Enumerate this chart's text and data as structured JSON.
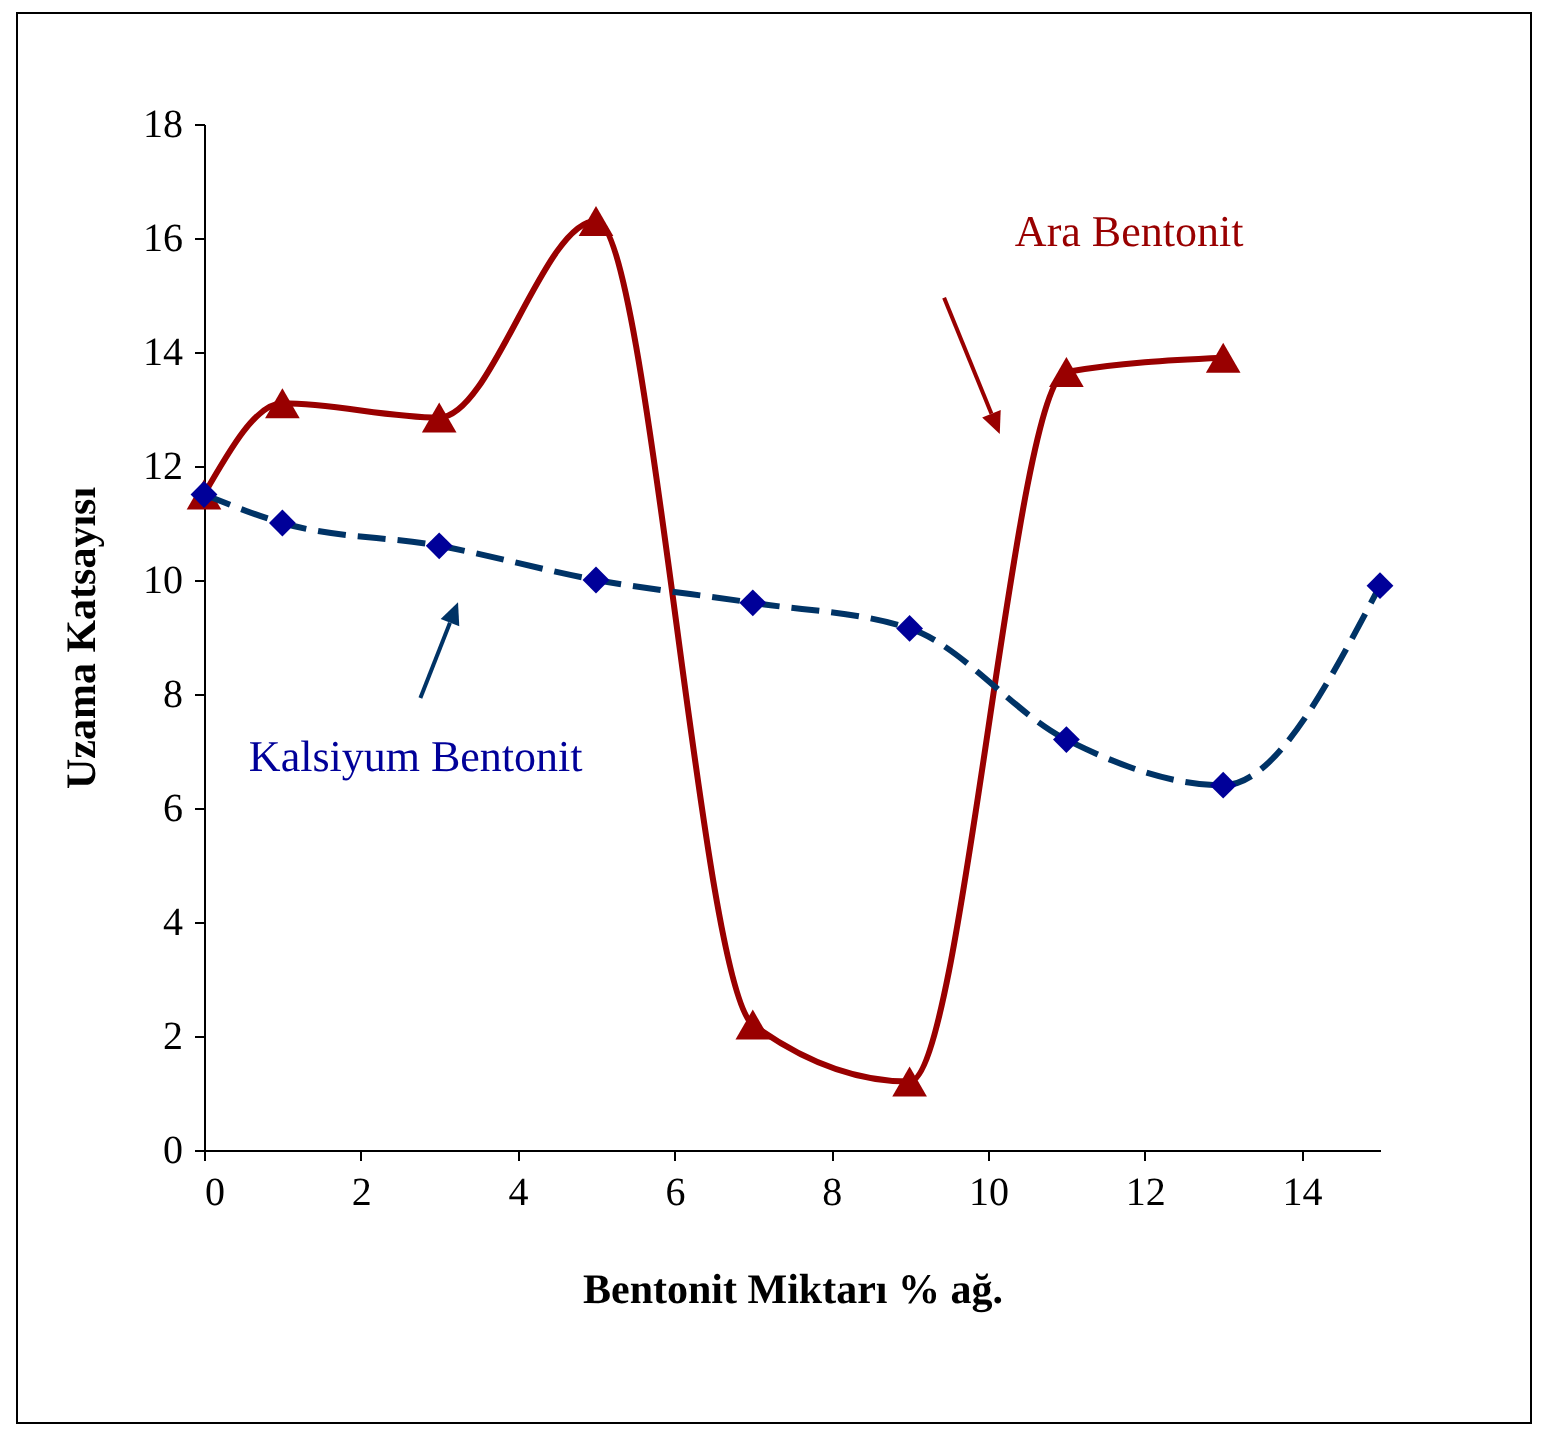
{
  "chart_data": {
    "type": "line",
    "xlabel": "Bentonit Miktarı % ağ.",
    "ylabel": "Uzama Katsayısı",
    "xlim": [
      0,
      15
    ],
    "xticks": [
      0,
      2,
      4,
      6,
      8,
      10,
      12,
      14
    ],
    "ylim": [
      0,
      18
    ],
    "yticks": [
      0,
      2,
      4,
      6,
      8,
      10,
      12,
      14,
      16,
      18
    ],
    "grid": false,
    "series": [
      {
        "name": "Ara Bentonit",
        "color": "#990000",
        "marker": "triangle",
        "line_style": "solid",
        "x": [
          0,
          1,
          3,
          5,
          7,
          9,
          11,
          13
        ],
        "values": [
          11.5,
          13.1,
          12.85,
          16.3,
          2.2,
          1.2,
          13.65,
          13.9
        ]
      },
      {
        "name": "Kalsiyum Bentonit",
        "color": "#000099",
        "marker": "diamond",
        "line_style": "dashed",
        "x": [
          0,
          1,
          3,
          5,
          7,
          9,
          11,
          13,
          15
        ],
        "values": [
          11.5,
          11.0,
          10.6,
          10.0,
          9.6,
          9.15,
          7.2,
          6.4,
          9.9
        ]
      }
    ]
  }
}
